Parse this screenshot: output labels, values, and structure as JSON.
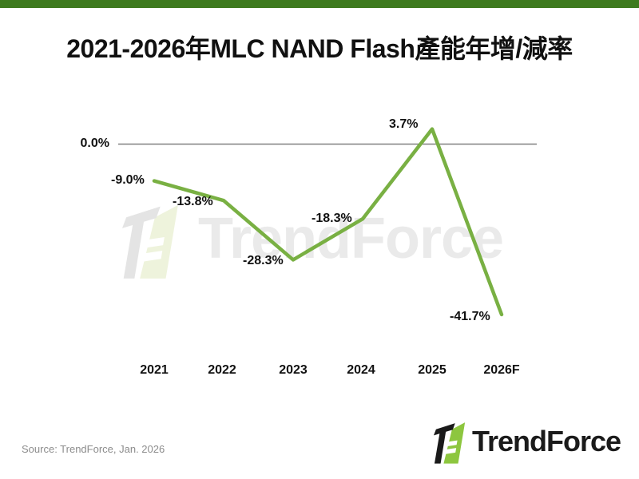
{
  "page": {
    "title": "2021-2026年MLC NAND Flash產能年增/減率",
    "source_note": "Source: TrendForce, Jan. 2026",
    "top_bar_color": "#3e7a1e"
  },
  "watermark": {
    "text": "TrendForce"
  },
  "footer_logo": {
    "text": "TrendForce"
  },
  "chart_data": {
    "type": "line",
    "title": "2021-2026年MLC NAND Flash產能年增/減率",
    "categories": [
      "2021",
      "2022",
      "2023",
      "2024",
      "2025",
      "2026F"
    ],
    "values": [
      -9.0,
      -13.8,
      -28.3,
      -18.3,
      3.7,
      -41.7
    ],
    "value_labels": [
      "-9.0%",
      "-13.8%",
      "-28.3%",
      "-18.3%",
      "3.7%",
      "-41.7%"
    ],
    "unit": "%",
    "baseline": {
      "value": 0.0,
      "label": "0.0%"
    },
    "ylim": [
      -45,
      8
    ],
    "xlabel": "",
    "ylabel": "",
    "grid": false,
    "legend": false,
    "line_color": "#79b043",
    "baseline_color": "#808080"
  }
}
